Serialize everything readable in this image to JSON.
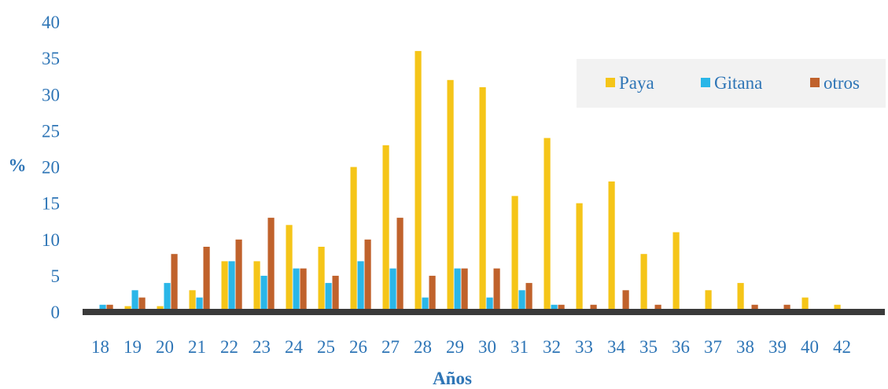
{
  "chart_data": {
    "type": "bar",
    "xlabel": "Años",
    "ylabel": "%",
    "ylim": [
      0,
      40
    ],
    "yticks": [
      0,
      5,
      10,
      15,
      20,
      25,
      30,
      35,
      40
    ],
    "grid": false,
    "legend_position": "top-right",
    "categories": [
      "18",
      "19",
      "20",
      "21",
      "22",
      "23",
      "24",
      "25",
      "26",
      "27",
      "28",
      "29",
      "30",
      "31",
      "32",
      "33",
      "34",
      "35",
      "36",
      "37",
      "38",
      "39",
      "40",
      "42"
    ],
    "series": [
      {
        "name": "Paya",
        "color": "#f5c518",
        "values": [
          0,
          0.8,
          0.8,
          3,
          7,
          7,
          12,
          9,
          20,
          23,
          36,
          32,
          31,
          16,
          24,
          15,
          18,
          8,
          11,
          3,
          4,
          0,
          2,
          1
        ]
      },
      {
        "name": "Gitana",
        "color": "#2ab6e8",
        "values": [
          1,
          3,
          4,
          2,
          7,
          5,
          6,
          4,
          7,
          6,
          2,
          6,
          2,
          3,
          1,
          0,
          0,
          0,
          0,
          0,
          0,
          0,
          0,
          0
        ]
      },
      {
        "name": "otros",
        "color": "#c0622c",
        "values": [
          1,
          2,
          8,
          9,
          10,
          13,
          6,
          5,
          10,
          13,
          5,
          6,
          6,
          4,
          1,
          1,
          3,
          1,
          0,
          0,
          1,
          1,
          0,
          0
        ]
      }
    ],
    "colors": {
      "axis_text": "#2e75b6",
      "baseline": "#3a3a3a",
      "legend_bg": "#f2f2f2"
    }
  }
}
